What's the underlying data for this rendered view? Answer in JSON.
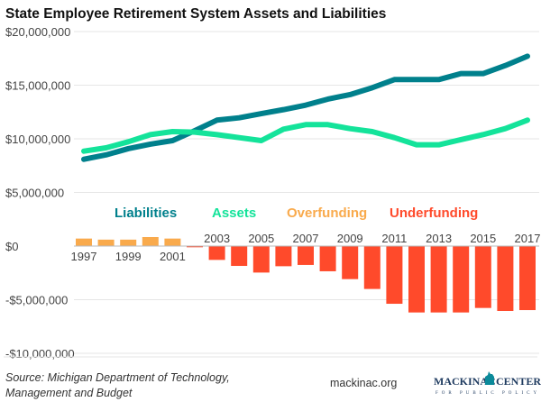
{
  "chart_data": {
    "type": "bar+line",
    "title": "State Employee Retirement System Assets and Liabilities",
    "years": [
      1997,
      1998,
      1999,
      2000,
      2001,
      2002,
      2003,
      2004,
      2005,
      2006,
      2007,
      2008,
      2009,
      2010,
      2011,
      2012,
      2013,
      2014,
      2015,
      2016,
      2017
    ],
    "x_tick_labels": [
      "1997",
      "1999",
      "2001",
      "2003",
      "2005",
      "2007",
      "2009",
      "2011",
      "2013",
      "2015",
      "2017"
    ],
    "y_tick_labels": [
      "$20,000,000",
      "$15,000,000",
      "$10,000,000",
      "$5,000,000",
      "$0",
      "-$5,000,000",
      "-$10,000,000"
    ],
    "y_ticks": [
      20000000,
      15000000,
      10000000,
      5000000,
      0,
      -5000000,
      -10000000
    ],
    "ylim": [
      -10000000,
      20000000
    ],
    "grid": true,
    "legend_placement": "center",
    "series": [
      {
        "name": "Liabilities",
        "type": "line",
        "color": "#00808c",
        "values": [
          8090000,
          8500000,
          9080000,
          9500000,
          9830000,
          10760000,
          11740000,
          11960000,
          12350000,
          12720000,
          13140000,
          13700000,
          14120000,
          14760000,
          15520000,
          15520000,
          15520000,
          16080000,
          16080000,
          16830000,
          17700000
        ]
      },
      {
        "name": "Assets",
        "type": "line",
        "color": "#14e39a",
        "values": [
          8850000,
          9160000,
          9720000,
          10390000,
          10670000,
          10620000,
          10390000,
          10110000,
          9830000,
          10900000,
          11320000,
          11320000,
          10950000,
          10670000,
          10110000,
          9440000,
          9440000,
          9920000,
          10390000,
          10950000,
          11740000
        ]
      },
      {
        "name": "Overfunding",
        "type": "bar",
        "color": "#f9aa4c",
        "values": [
          700000,
          600000,
          600000,
          840000,
          700000,
          null,
          null,
          null,
          null,
          null,
          null,
          null,
          null,
          null,
          null,
          null,
          null,
          null,
          null,
          null,
          null
        ]
      },
      {
        "name": "Underfunding",
        "type": "bar",
        "color": "#ff4a2b",
        "values": [
          null,
          null,
          null,
          null,
          null,
          -110000,
          -1290000,
          -1850000,
          -2470000,
          -1880000,
          -1760000,
          -2350000,
          -3080000,
          -4000000,
          -5380000,
          -6190000,
          -6190000,
          -6190000,
          -5770000,
          -6050000,
          -5970000
        ]
      }
    ]
  },
  "footer": {
    "source": "Source: Michigan Department of Technology,",
    "source_line2": "Management and Budget",
    "site": "mackinac.org",
    "logo_text": "MACKINAC CENTER",
    "logo_sub": "FOR PUBLIC POLICY"
  }
}
